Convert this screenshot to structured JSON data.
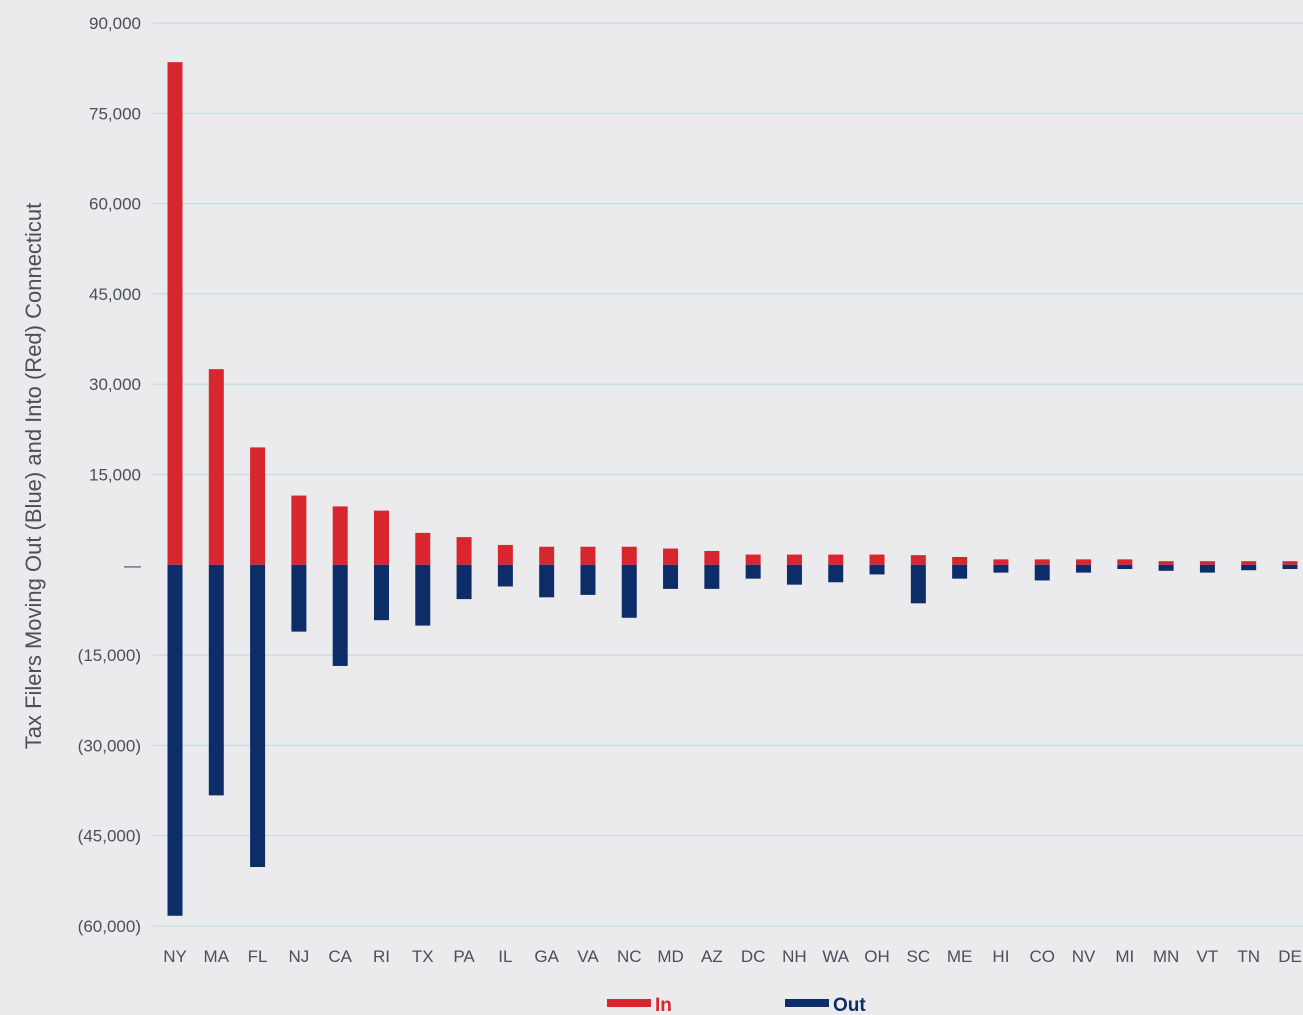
{
  "chart_data": {
    "type": "bar",
    "title": "",
    "xlabel": "",
    "ylabel": "Tax Filers Moving Out  (Blue) and Into  (Red) Connecticut",
    "ylim": [
      -60000,
      90000
    ],
    "yticks": [
      90000,
      75000,
      60000,
      45000,
      30000,
      15000,
      0,
      -15000,
      -30000,
      -45000,
      -60000
    ],
    "ytick_labels": [
      "90,000",
      "75,000",
      "60,000",
      "45,000",
      "30,000",
      "15,000",
      "—",
      "(15,000)",
      "(30,000)",
      "(45,000)",
      "(60,000)"
    ],
    "grid": true,
    "legend_position": "bottom",
    "categories": [
      "NY",
      "MA",
      "FL",
      "NJ",
      "CA",
      "RI",
      "TX",
      "PA",
      "IL",
      "GA",
      "VA",
      "NC",
      "MD",
      "AZ",
      "DC",
      "NH",
      "WA",
      "OH",
      "SC",
      "ME",
      "HI",
      "CO",
      "NV",
      "MI",
      "MN",
      "VT",
      "TN",
      "DE"
    ],
    "series": [
      {
        "name": "In",
        "color": "#d8262e",
        "values": [
          83500,
          32500,
          19500,
          11500,
          9700,
          9000,
          5300,
          4600,
          3300,
          3000,
          3000,
          3000,
          2700,
          2300,
          1700,
          1700,
          1700,
          1700,
          1600,
          1300,
          900,
          900,
          900,
          900,
          600,
          600,
          600,
          600
        ]
      },
      {
        "name": "Out",
        "color": "#0d2d69",
        "values": [
          -58300,
          -38300,
          -50200,
          -11100,
          -16800,
          -9200,
          -10100,
          -5700,
          -3600,
          -5400,
          -5000,
          -8800,
          -4000,
          -4000,
          -2300,
          -3300,
          -2900,
          -1600,
          -6400,
          -2300,
          -1300,
          -2600,
          -1300,
          -700,
          -1000,
          -1300,
          -900,
          -700
        ]
      }
    ]
  },
  "colors": {
    "background": "#ebebed",
    "grid": "#bfdde3",
    "axis_text": "#4a4f5a"
  }
}
